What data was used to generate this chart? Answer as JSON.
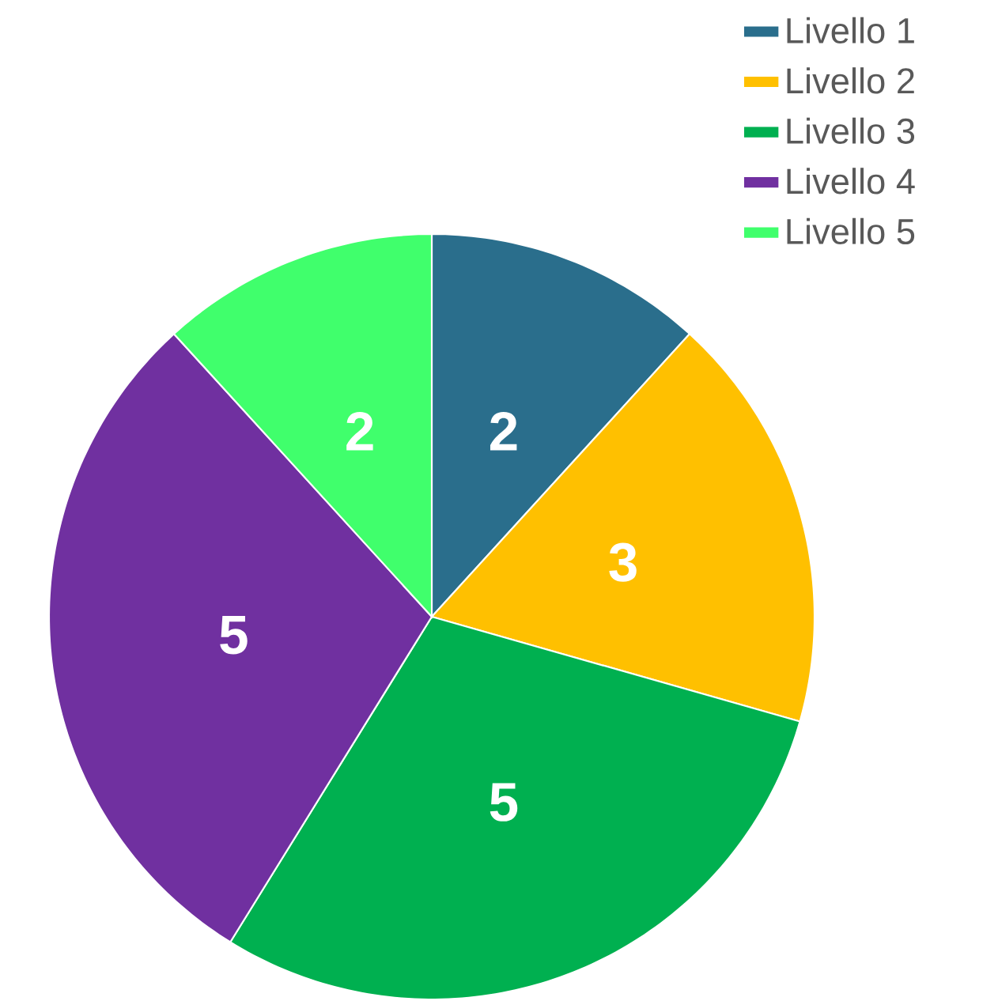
{
  "chart_data": {
    "type": "pie",
    "categories": [
      "Livello 1",
      "Livello 2",
      "Livello 3",
      "Livello 4",
      "Livello 5"
    ],
    "values": [
      2,
      3,
      5,
      5,
      2
    ],
    "colors": [
      "#2a6e8c",
      "#ffc000",
      "#00b050",
      "#7030a0",
      "#40ff6c"
    ],
    "data_labels": true,
    "legend": "top right"
  }
}
